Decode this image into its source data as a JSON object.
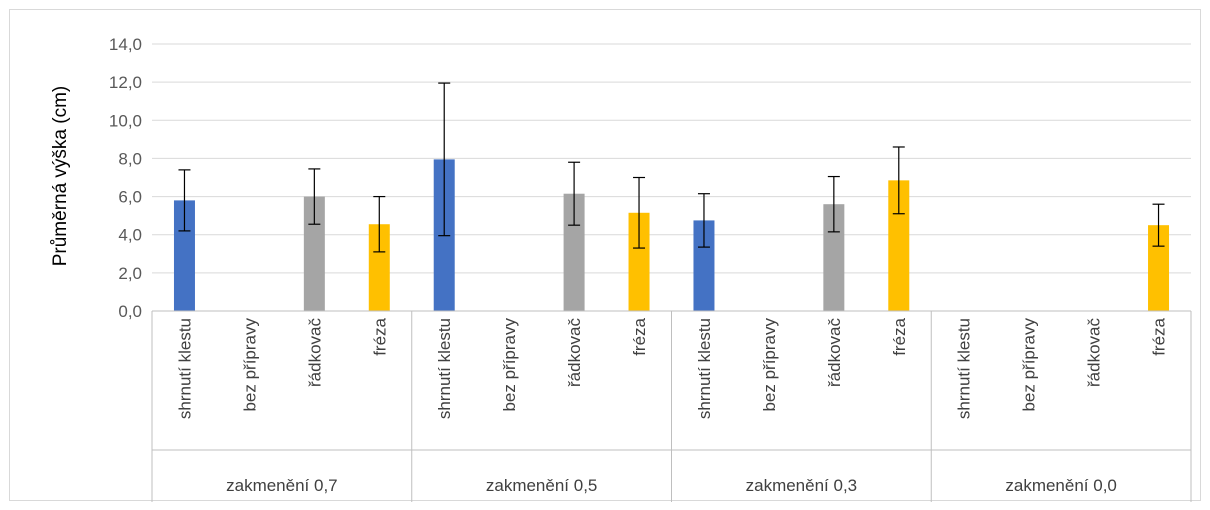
{
  "chart_data": {
    "type": "bar",
    "ylabel": "Průměrná výška (cm)",
    "ylim": [
      0,
      14
    ],
    "ytick_step": 2,
    "ytick_labels": [
      "0,0",
      "2,0",
      "4,0",
      "6,0",
      "8,0",
      "10,0",
      "12,0",
      "14,0"
    ],
    "grid": true,
    "groups": [
      {
        "label": "zakmenění 0,7",
        "bars": [
          {
            "category": "shrnutí klestu",
            "value": 5.8,
            "err": 1.6,
            "color": "#4472c4"
          },
          {
            "category": "bez přípravy",
            "value": 0.0,
            "err": 0,
            "color": "#ed7d31"
          },
          {
            "category": "řádkovač",
            "value": 6.0,
            "err": 1.45,
            "color": "#a5a5a5"
          },
          {
            "category": "fréza",
            "value": 4.55,
            "err": 1.45,
            "color": "#ffc000"
          }
        ]
      },
      {
        "label": "zakmenění 0,5",
        "bars": [
          {
            "category": "shrnutí klestu",
            "value": 7.95,
            "err": 4.0,
            "color": "#4472c4"
          },
          {
            "category": "bez přípravy",
            "value": 0.0,
            "err": 0,
            "color": "#ed7d31"
          },
          {
            "category": "řádkovač",
            "value": 6.15,
            "err": 1.65,
            "color": "#a5a5a5"
          },
          {
            "category": "fréza",
            "value": 5.15,
            "err": 1.85,
            "color": "#ffc000"
          }
        ]
      },
      {
        "label": "zakmenění 0,3",
        "bars": [
          {
            "category": "shrnutí klestu",
            "value": 4.75,
            "err": 1.4,
            "color": "#4472c4"
          },
          {
            "category": "bez přípravy",
            "value": 0.0,
            "err": 0,
            "color": "#ed7d31"
          },
          {
            "category": "řádkovač",
            "value": 5.6,
            "err": 1.45,
            "color": "#a5a5a5"
          },
          {
            "category": "fréza",
            "value": 6.85,
            "err": 1.75,
            "color": "#ffc000"
          }
        ]
      },
      {
        "label": "zakmenění 0,0",
        "bars": [
          {
            "category": "shrnutí klestu",
            "value": 0.0,
            "err": 0,
            "color": "#4472c4"
          },
          {
            "category": "bez přípravy",
            "value": 0.0,
            "err": 0,
            "color": "#ed7d31"
          },
          {
            "category": "řádkovač",
            "value": 0.0,
            "err": 0,
            "color": "#a5a5a5"
          },
          {
            "category": "fréza",
            "value": 4.5,
            "err": 1.1,
            "color": "#ffc000"
          }
        ]
      }
    ],
    "colors": {
      "gridline": "#d9d9d9",
      "axis": "#bfbfbf",
      "error_bar": "#000000"
    }
  }
}
